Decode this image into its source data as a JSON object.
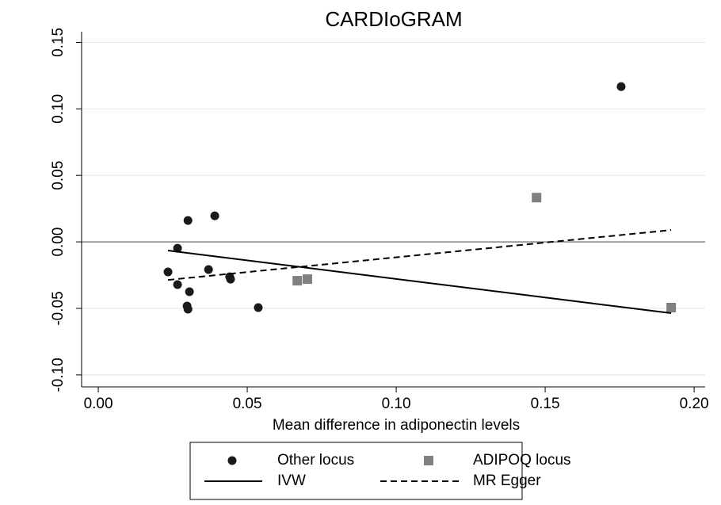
{
  "chart_data": {
    "type": "scatter",
    "title": "CARDIoGRAM",
    "x_label": "Mean difference in adiponectin levels",
    "xlim": [
      -0.0056,
      0.2037
    ],
    "ylim": [
      -0.109,
      0.158
    ],
    "xticks": [
      {
        "value": 0,
        "label": "0.00"
      },
      0.05,
      {
        "value": 0.1,
        "label": "0.10"
      },
      0.15,
      {
        "value": 0.2,
        "label": "0.20"
      }
    ],
    "yticks": [
      {
        "value": -0.1,
        "label": "-0.10"
      },
      -0.05,
      {
        "value": 0,
        "label": "0.00"
      },
      0.05,
      {
        "value": 0.1,
        "label": "0.10"
      },
      0.15
    ],
    "grid": true,
    "reference_line": 0,
    "series": [
      {
        "name": "Other locus",
        "marker": "circle",
        "color": "#1a1a1a",
        "x": [
          0.0234,
          0.0266,
          0.0266,
          0.0301,
          0.0298,
          0.0301,
          0.0306,
          0.0391,
          0.037,
          0.0441,
          0.0444,
          0.0537,
          0.1755
        ],
        "values": [
          -0.0226,
          -0.0048,
          -0.0321,
          0.0161,
          -0.0482,
          -0.0506,
          -0.0375,
          0.0196,
          -0.0208,
          -0.0262,
          -0.028,
          -0.0494,
          0.1167
        ]
      },
      {
        "name": "ADIPOQ locus",
        "marker": "square",
        "color": "#808080",
        "x": [
          0.0668,
          0.0702,
          0.1471,
          0.1923
        ],
        "values": [
          -0.0292,
          -0.028,
          0.0333,
          -0.0494
        ]
      },
      {
        "name": "IVW",
        "line_style": "solid",
        "color": "#000000",
        "x": [
          0.0234,
          0.1923
        ],
        "values": [
          -0.0065,
          -0.0536
        ]
      },
      {
        "name": "MR Egger",
        "line_style": "dashed",
        "color": "#000000",
        "x": [
          0.0234,
          0.1923
        ],
        "values": [
          -0.0286,
          0.0089
        ]
      }
    ]
  }
}
